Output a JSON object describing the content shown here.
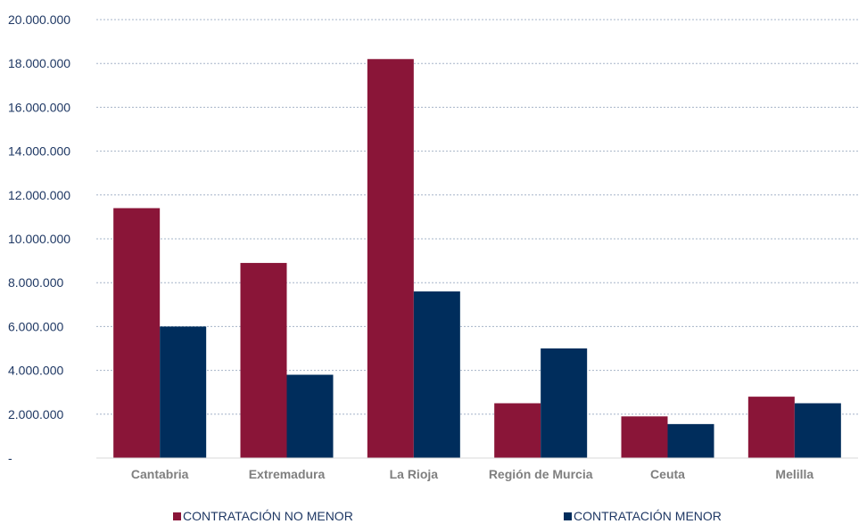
{
  "chart_data": {
    "type": "bar",
    "title": "",
    "xlabel": "",
    "ylabel": "",
    "categories": [
      "Cantabria",
      "Extremadura",
      "La Rioja",
      "Región de Murcia",
      "Ceuta",
      "Melilla"
    ],
    "series": [
      {
        "name": "CONTRATACIÓN NO MENOR",
        "color": "#8a1538",
        "values": [
          11400000,
          8900000,
          18200000,
          2500000,
          1900000,
          2800000
        ]
      },
      {
        "name": "CONTRATACIÓN MENOR",
        "color": "#002d5c",
        "values": [
          6000000,
          3800000,
          7600000,
          5000000,
          1550000,
          2500000
        ]
      }
    ],
    "ylim": [
      0,
      20000000
    ],
    "yticks": [
      0,
      2000000,
      4000000,
      6000000,
      8000000,
      10000000,
      12000000,
      14000000,
      16000000,
      18000000,
      20000000
    ],
    "ytick_labels": [
      "-",
      "2.000.000",
      "4.000.000",
      "6.000.000",
      "8.000.000",
      "10.000.000",
      "12.000.000",
      "14.000.000",
      "16.000.000",
      "18.000.000",
      "20.000.000"
    ],
    "grid": true,
    "legend_position": "bottom"
  }
}
